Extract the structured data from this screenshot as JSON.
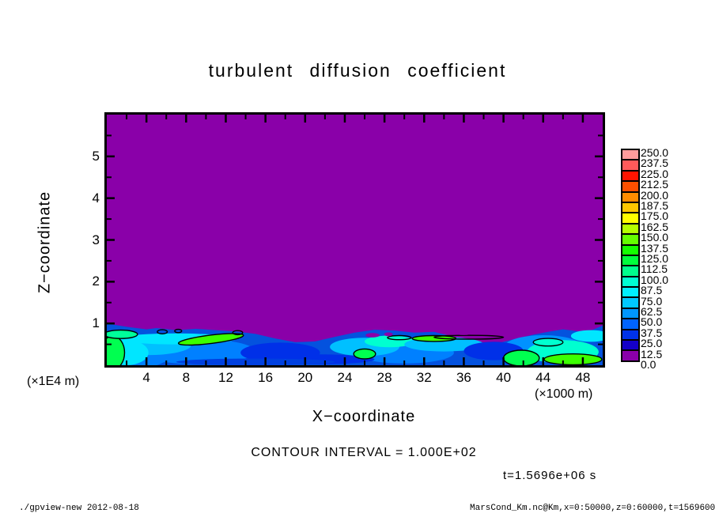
{
  "title": "turbulent diffusion coefficient",
  "axes": {
    "x": {
      "label": "X−coordinate",
      "unit": "(×1000 m)",
      "range": [
        0,
        50
      ],
      "major_ticks": [
        4,
        8,
        12,
        16,
        20,
        24,
        28,
        32,
        36,
        40,
        44,
        48
      ],
      "minor_ticks": [
        2,
        6,
        10,
        14,
        18,
        22,
        26,
        30,
        34,
        38,
        42,
        46
      ]
    },
    "z": {
      "label": "Z−coordinate",
      "unit": "(×1E4 m)",
      "range": [
        0,
        6
      ],
      "major_ticks": [
        1,
        2,
        3,
        4,
        5
      ],
      "minor_ticks": [
        0.5,
        1.5,
        2.5,
        3.5,
        4.5,
        5.5
      ]
    }
  },
  "colorbar": {
    "labels_top_to_bottom": [
      "250.0",
      "237.5",
      "225.0",
      "212.5",
      "200.0",
      "187.5",
      "175.0",
      "162.5",
      "150.0",
      "137.5",
      "125.0",
      "112.5",
      "100.0",
      "87.5",
      "75.0",
      "62.5",
      "50.0",
      "37.5",
      "25.0",
      "12.5",
      "0.0"
    ],
    "colors_top_to_bottom": [
      "#FF9C9C",
      "#FF5A5A",
      "#FF1400",
      "#FF5000",
      "#FF8C00",
      "#FFC800",
      "#FFFF00",
      "#B4FF00",
      "#64FF00",
      "#14FF00",
      "#00FF3C",
      "#00FF8C",
      "#00FFD2",
      "#00F0FF",
      "#00C8FF",
      "#0096FF",
      "#0064FF",
      "#0032E8",
      "#1400C8",
      "#8A00A9"
    ]
  },
  "annotations": {
    "contour_interval": "CONTOUR INTERVAL = 1.000E+02",
    "time": "t=1.5696e+06 s"
  },
  "footer": {
    "left": "./gpview-new  2012-08-18",
    "right": "MarsCond_Km.nc@Km,x=0:50000,z=0:60000,t=1569600"
  },
  "chart_data": {
    "type": "heatmap",
    "title": "turbulent diffusion coefficient",
    "xlabel": "X-coordinate (×1000 m), range 0–50000 m",
    "ylabel": "Z-coordinate (×1E4 m), range 0–60000 m",
    "value_levels": [
      0.0,
      12.5,
      25.0,
      37.5,
      50.0,
      62.5,
      75.0,
      87.5,
      100.0,
      112.5,
      125.0,
      137.5,
      150.0,
      162.5,
      175.0,
      187.5,
      200.0,
      212.5,
      225.0,
      237.5,
      250.0
    ],
    "contour_interval": 100.0,
    "time_seconds": 1569600,
    "summary": "Field is ~0 (purple, lowest bin 0–12.5) everywhere above z≈0.5–1.0×1E4 m; a shallow turbulent boundary layer along the bottom holds values ~25–150 (blue to cyan) with green patches (>100, outlined by the 100-contour).",
    "field": {
      "background_value_bin": "0.0–12.5",
      "background_color": "#8A00A9",
      "base_layer_color": "#0452DE",
      "boundary_layer_top": [
        [
          0,
          1.0
        ],
        [
          2,
          0.92
        ],
        [
          4,
          0.86
        ],
        [
          5,
          0.89
        ],
        [
          7,
          0.84
        ],
        [
          9,
          0.87
        ],
        [
          11,
          0.84
        ],
        [
          13,
          0.81
        ],
        [
          15,
          0.75
        ],
        [
          17,
          0.64
        ],
        [
          19,
          0.55
        ],
        [
          21,
          0.57
        ],
        [
          23,
          0.68
        ],
        [
          25,
          0.78
        ],
        [
          27,
          0.85
        ],
        [
          29,
          0.83
        ],
        [
          31,
          0.78
        ],
        [
          33,
          0.8
        ],
        [
          35,
          0.68
        ],
        [
          37,
          0.54
        ],
        [
          39,
          0.5
        ],
        [
          41,
          0.62
        ],
        [
          43,
          0.73
        ],
        [
          44.5,
          0.8
        ],
        [
          46,
          0.86
        ],
        [
          48,
          0.8
        ],
        [
          49,
          0.85
        ],
        [
          50,
          0.95
        ]
      ],
      "patches": [
        {
          "x": 2.5,
          "z": 0.28,
          "rx": 4.0,
          "rz": 0.36,
          "fill": "#0080FF"
        },
        {
          "x": 9,
          "z": 0.33,
          "rx": 6.0,
          "rz": 0.3,
          "fill": "#0080FF"
        },
        {
          "x": 30,
          "z": 0.3,
          "rx": 5.0,
          "rz": 0.26,
          "fill": "#0080FF"
        },
        {
          "x": 44,
          "z": 0.42,
          "rx": 4.0,
          "rz": 0.3,
          "fill": "#0092FF"
        },
        {
          "x": 4,
          "z": 0.48,
          "rx": 4.5,
          "rz": 0.24,
          "fill": "#00C0FF"
        },
        {
          "x": 2,
          "z": 0.3,
          "rx": 2.2,
          "rz": 0.3,
          "fill": "#00E6FF"
        },
        {
          "x": 7,
          "z": 0.63,
          "rx": 6.0,
          "rz": 0.13,
          "fill": "#00E6FF"
        },
        {
          "x": 26,
          "z": 0.44,
          "rx": 3.5,
          "rz": 0.22,
          "fill": "#00C0FF"
        },
        {
          "x": 28.5,
          "z": 0.57,
          "rx": 2.5,
          "rz": 0.14,
          "fill": "#00FFD0"
        },
        {
          "x": 34,
          "z": 0.5,
          "rx": 4.0,
          "rz": 0.17,
          "fill": "#00C0FF"
        },
        {
          "x": 46,
          "z": 0.32,
          "rx": 3.6,
          "rz": 0.28,
          "fill": "#00FFD0"
        },
        {
          "x": 48.8,
          "z": 0.7,
          "rx": 2.0,
          "rz": 0.14,
          "fill": "#00E6FF"
        },
        {
          "x": 17.5,
          "z": 0.3,
          "rx": 4.0,
          "rz": 0.24,
          "fill": "#0030E8"
        },
        {
          "x": 21,
          "z": 0.14,
          "rx": 6.0,
          "rz": 0.12,
          "fill": "#0030E8"
        },
        {
          "x": 39,
          "z": 0.34,
          "rx": 3.0,
          "rz": 0.22,
          "fill": "#0030E8"
        },
        {
          "x": 15,
          "z": 0.08,
          "rx": 8.0,
          "rz": 0.08,
          "fill": "#0040E0"
        },
        {
          "x": 0.6,
          "z": 0.3,
          "rx": 1.2,
          "rz": 0.4,
          "fill": "#00FF50",
          "stroke": "#000000"
        },
        {
          "x": 1.4,
          "z": 0.74,
          "rx": 1.7,
          "rz": 0.1,
          "fill": "#00FF9A",
          "stroke": "#000000"
        },
        {
          "x": 10.5,
          "z": 0.62,
          "rx": 3.3,
          "rz": 0.1,
          "rot": -7,
          "fill": "#3CFF00",
          "stroke": "#000000"
        },
        {
          "x": 26,
          "z": 0.27,
          "rx": 1.1,
          "rz": 0.12,
          "fill": "#00FF50",
          "stroke": "#000000"
        },
        {
          "x": 33,
          "z": 0.64,
          "rx": 2.2,
          "rz": 0.07,
          "fill": "#3CFF00",
          "stroke": "#000000"
        },
        {
          "x": 41.8,
          "z": 0.17,
          "rx": 1.8,
          "rz": 0.19,
          "fill": "#00FF50",
          "stroke": "#000000"
        },
        {
          "x": 47,
          "z": 0.14,
          "rx": 2.9,
          "rz": 0.13,
          "fill": "#3CFF00",
          "stroke": "#000000"
        },
        {
          "x": 44.5,
          "z": 0.55,
          "rx": 1.5,
          "rz": 0.09,
          "fill": "#00FFD0",
          "stroke": "#000000"
        },
        {
          "x": 5.6,
          "z": 0.8,
          "rx": 0.5,
          "rz": 0.05,
          "fill": "none",
          "stroke": "#000000"
        },
        {
          "x": 7.2,
          "z": 0.82,
          "rx": 0.35,
          "rz": 0.04,
          "fill": "none",
          "stroke": "#000000"
        },
        {
          "x": 13.2,
          "z": 0.78,
          "rx": 0.5,
          "rz": 0.05,
          "fill": "none",
          "stroke": "#000000"
        },
        {
          "x": 36.5,
          "z": 0.67,
          "rx": 3.5,
          "rz": 0.045,
          "fill": "none",
          "stroke": "#000000"
        },
        {
          "x": 29.5,
          "z": 0.66,
          "rx": 1.2,
          "rz": 0.05,
          "fill": "none",
          "stroke": "#000000"
        },
        {
          "x": 26.8,
          "z": 0.72,
          "rx": 0.7,
          "rz": 0.055,
          "fill": "#8A00A9"
        },
        {
          "x": 28.4,
          "z": 0.74,
          "rx": 0.45,
          "rz": 0.045,
          "fill": "#8A00A9"
        },
        {
          "x": 36,
          "z": 0.77,
          "rx": 0.9,
          "rz": 0.05,
          "fill": "#8A00A9"
        }
      ]
    }
  }
}
